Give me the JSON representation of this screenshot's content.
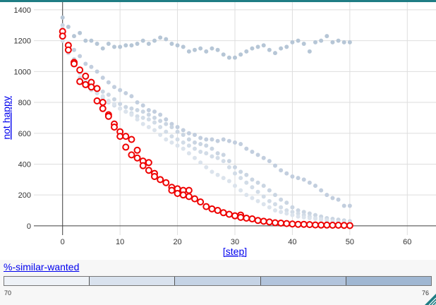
{
  "chart_data": {
    "type": "scatter",
    "xlabel": "[step]",
    "ylabel": "not happy",
    "xlim": [
      -5,
      65
    ],
    "ylim": [
      -60,
      1450
    ],
    "xticks": [
      0,
      10,
      20,
      30,
      40,
      50,
      60
    ],
    "yticks": [
      0,
      200,
      400,
      600,
      800,
      1000,
      1200,
      1400
    ],
    "grid": true,
    "series": [
      {
        "color": "#b6c6d6",
        "style": "dot",
        "x": [
          0,
          1,
          2,
          3,
          4,
          5,
          6,
          7,
          8,
          9,
          10,
          11,
          12,
          13,
          14,
          15,
          16,
          17,
          18,
          19,
          20,
          21,
          22,
          23,
          24,
          25,
          26,
          27,
          28,
          29,
          30,
          31,
          32,
          33,
          34,
          35,
          36,
          37,
          38,
          39,
          40,
          41,
          42,
          43,
          44,
          45,
          46,
          47,
          48,
          49,
          50
        ],
        "values": [
          1350,
          1290,
          1230,
          1250,
          1200,
          1200,
          1180,
          1150,
          1180,
          1160,
          1160,
          1170,
          1170,
          1180,
          1200,
          1180,
          1200,
          1220,
          1210,
          1180,
          1170,
          1160,
          1130,
          1140,
          1150,
          1130,
          1150,
          1140,
          1110,
          1090,
          1090,
          1110,
          1130,
          1150,
          1160,
          1170,
          1140,
          1120,
          1150,
          1160,
          1190,
          1200,
          1180,
          1130,
          1190,
          1200,
          1230,
          1190,
          1200,
          1190,
          1190
        ]
      },
      {
        "color": "#c2cede",
        "style": "dot",
        "x": [
          0,
          1,
          2,
          3,
          4,
          5,
          6,
          7,
          8,
          9,
          10,
          11,
          12,
          13,
          14,
          15,
          16,
          17,
          18,
          19,
          20,
          21,
          22,
          23,
          24,
          25,
          26,
          27,
          28,
          29,
          30,
          31,
          32,
          33,
          34,
          35,
          36,
          37,
          38,
          39,
          40,
          41,
          42,
          43,
          44,
          45,
          46,
          47,
          48,
          49,
          50
        ],
        "values": [
          1250,
          1180,
          1140,
          1100,
          1050,
          1030,
          1000,
          960,
          930,
          900,
          880,
          860,
          840,
          800,
          780,
          750,
          740,
          720,
          690,
          660,
          640,
          620,
          600,
          590,
          570,
          560,
          560,
          550,
          560,
          550,
          540,
          530,
          500,
          480,
          460,
          440,
          420,
          390,
          360,
          340,
          320,
          310,
          300,
          280,
          260,
          230,
          200,
          180,
          170,
          130,
          130
        ]
      },
      {
        "color": "#cad5e2",
        "style": "dot",
        "x": [
          0,
          1,
          2,
          3,
          4,
          5,
          6,
          7,
          8,
          9,
          10,
          11,
          12,
          13,
          14,
          15,
          16,
          17,
          18,
          19,
          20,
          21,
          22,
          23,
          24,
          25,
          26,
          27,
          28,
          29,
          30,
          31,
          32,
          33,
          34,
          35,
          36,
          37,
          38,
          39,
          40,
          41,
          42,
          43,
          44,
          45,
          46,
          47,
          48,
          49,
          50
        ],
        "values": [
          1300,
          1150,
          1080,
          1010,
          980,
          940,
          900,
          870,
          850,
          820,
          790,
          770,
          760,
          750,
          740,
          720,
          700,
          680,
          660,
          640,
          610,
          590,
          560,
          540,
          530,
          520,
          500,
          470,
          460,
          420,
          380,
          350,
          330,
          300,
          280,
          260,
          230,
          200,
          170,
          150,
          120,
          100,
          90,
          80,
          70,
          60,
          50,
          45,
          40,
          35,
          30
        ]
      },
      {
        "color": "#d2dce7",
        "style": "dot",
        "x": [
          0,
          1,
          2,
          3,
          4,
          5,
          6,
          7,
          8,
          9,
          10,
          11,
          12,
          13,
          14,
          15,
          16,
          17,
          18,
          19,
          20,
          21,
          22,
          23,
          24,
          25,
          26,
          27,
          28,
          29,
          30,
          31,
          32,
          33,
          34,
          35,
          36,
          37,
          38,
          39,
          40,
          41,
          42,
          43,
          44,
          45,
          46,
          47,
          48,
          49,
          50
        ],
        "values": [
          1200,
          1120,
          1040,
          960,
          920,
          880,
          860,
          830,
          800,
          780,
          760,
          740,
          730,
          710,
          700,
          690,
          670,
          640,
          610,
          580,
          560,
          540,
          520,
          500,
          480,
          470,
          450,
          440,
          420,
          380,
          340,
          310,
          280,
          250,
          220,
          190,
          160,
          140,
          120,
          100,
          90,
          80,
          70,
          60,
          50,
          45,
          40,
          30,
          25,
          20,
          20
        ]
      },
      {
        "color": "#dbe3ec",
        "style": "dot",
        "x": [
          0,
          1,
          2,
          3,
          4,
          5,
          6,
          7,
          8,
          9,
          10,
          11,
          12,
          13,
          14,
          15,
          16,
          17,
          18,
          19,
          20,
          21,
          22,
          23,
          24,
          25,
          26,
          27,
          28,
          29,
          30,
          31,
          32,
          33,
          34,
          35,
          36,
          37,
          38,
          39,
          40,
          41,
          42,
          43,
          44,
          45,
          46,
          47,
          48,
          49,
          50
        ],
        "values": [
          1280,
          1160,
          1060,
          990,
          940,
          900,
          870,
          840,
          810,
          790,
          760,
          740,
          720,
          690,
          660,
          640,
          620,
          590,
          560,
          540,
          520,
          500,
          470,
          440,
          410,
          380,
          350,
          330,
          310,
          290,
          260,
          230,
          200,
          180,
          160,
          140,
          120,
          100,
          90,
          80,
          70,
          60,
          55,
          50,
          45,
          40,
          35,
          30,
          25,
          25,
          20
        ]
      },
      {
        "color": "#ee0000",
        "style": "ring",
        "x": [
          0,
          0,
          1,
          1,
          2,
          2,
          3,
          3,
          4,
          4,
          5,
          5,
          6,
          6,
          7,
          7,
          8,
          8,
          9,
          9,
          10,
          10,
          11,
          11,
          12,
          12,
          13,
          13,
          14,
          14,
          15,
          15,
          16,
          16,
          17,
          18,
          19,
          19,
          20,
          20,
          21,
          21,
          22,
          22,
          23,
          24,
          25,
          26,
          27,
          28,
          29,
          30,
          31,
          31,
          32,
          33,
          34,
          35,
          36,
          37,
          38,
          39,
          40,
          41,
          42,
          43,
          44,
          45,
          46,
          47,
          48,
          49,
          50
        ],
        "values": [
          1260,
          1230,
          1170,
          1140,
          1060,
          1050,
          1010,
          935,
          970,
          915,
          930,
          900,
          890,
          810,
          800,
          760,
          720,
          710,
          660,
          640,
          610,
          580,
          580,
          510,
          560,
          460,
          490,
          440,
          420,
          390,
          410,
          360,
          340,
          320,
          300,
          280,
          250,
          230,
          240,
          210,
          230,
          200,
          230,
          190,
          175,
          155,
          125,
          110,
          100,
          85,
          75,
          65,
          70,
          55,
          50,
          45,
          35,
          30,
          25,
          20,
          18,
          15,
          12,
          10,
          10,
          8,
          6,
          5,
          5,
          4,
          4,
          3,
          2
        ]
      }
    ]
  },
  "controls": {
    "slider_label": "%-similar-wanted",
    "strip_min": "70",
    "strip_max": "76",
    "strip_colors": [
      "#eef2f7",
      "#d9e2ee",
      "#c5d3e5",
      "#b2c4dc",
      "#a0b7d2"
    ]
  }
}
